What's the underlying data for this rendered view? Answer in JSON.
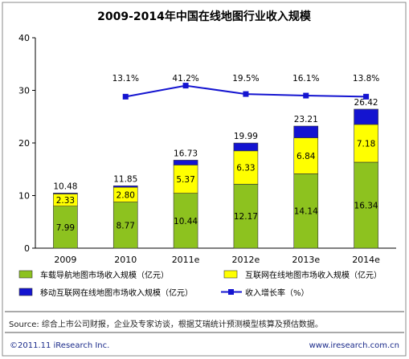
{
  "chart_data": {
    "type": "bar",
    "title": "2009-2014年中国在线地图行业收入规模",
    "categories": [
      "2009",
      "2010",
      "2011e",
      "2012e",
      "2013e",
      "2014e"
    ],
    "ylim": [
      0,
      40
    ],
    "yticks": [
      0,
      10,
      20,
      30,
      40
    ],
    "stacked": true,
    "series": [
      {
        "name": "车载导航地图市场收入规模（亿元）",
        "color": "#8dc21f",
        "values": [
          7.99,
          8.77,
          10.44,
          12.17,
          14.14,
          16.34
        ]
      },
      {
        "name": "互联网在线地图市场收入规模（亿元）",
        "color": "#ffff00",
        "values": [
          2.33,
          2.8,
          5.37,
          6.33,
          6.84,
          7.18
        ]
      },
      {
        "name": "移动互联网在线地图市场收入规模（亿元）",
        "color": "#1414d0",
        "values": [
          0.16,
          0.28,
          0.92,
          1.49,
          2.23,
          2.9
        ]
      }
    ],
    "totals": [
      "10.48",
      "11.85",
      "16.73",
      "19.99",
      "23.21",
      "26.42"
    ],
    "segment_labels": [
      [
        "7.99",
        "8.77",
        "10.44",
        "12.17",
        "14.14",
        "16.34"
      ],
      [
        "2.33",
        "2.80",
        "5.37",
        "6.33",
        "6.84",
        "7.18"
      ]
    ],
    "growth_series": {
      "name": "收入增长率（%）",
      "color": "#1414d0",
      "start_index": 1,
      "values": [
        28.8,
        30.9,
        29.3,
        29.0,
        28.8
      ],
      "labels": [
        "13.1%",
        "41.2%",
        "19.5%",
        "16.1%",
        "13.8%"
      ]
    },
    "legend_placement": "bottom",
    "grid": false
  },
  "source_text": "Source: 综合上市公司财报，企业及专家访谈，根据艾瑞统计预测模型核算及预估数据。",
  "footer": {
    "copyright": "©2011.11 iResearch Inc.",
    "url": "www.iresearch.com.cn"
  }
}
